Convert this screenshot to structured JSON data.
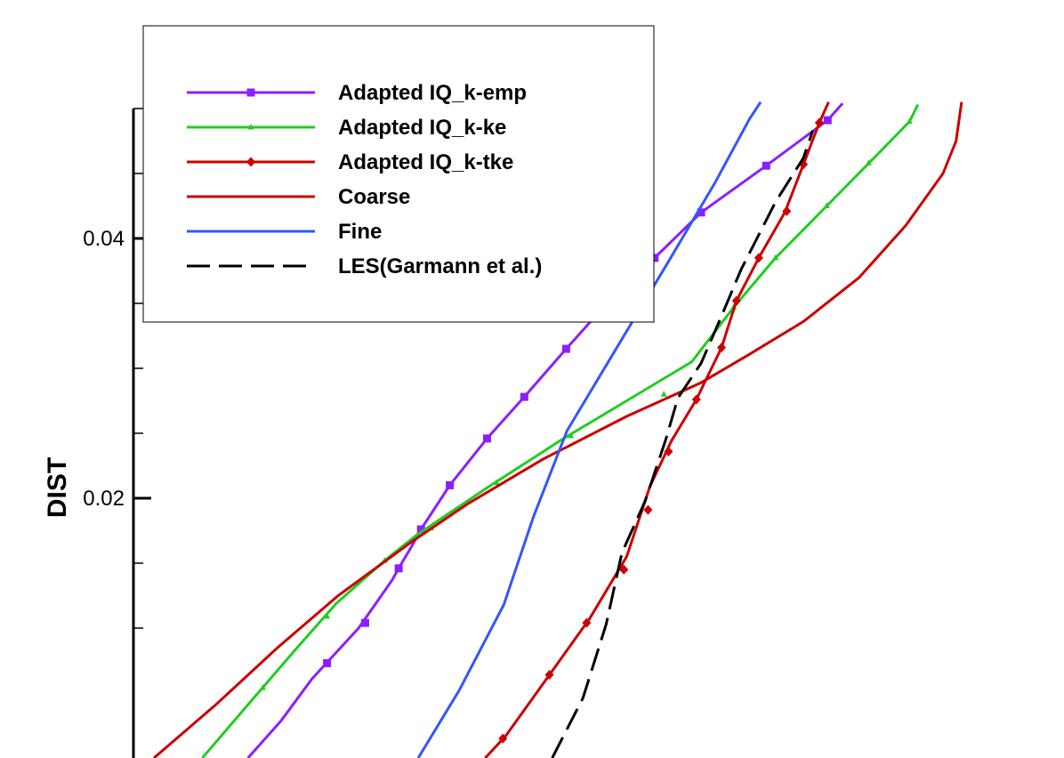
{
  "chart_data": {
    "type": "line",
    "title": "",
    "xlabel": "",
    "ylabel": "DIST",
    "ylim": [
      0.0,
      0.05
    ],
    "xlim": [
      0,
      1
    ],
    "yticks_major": [
      0.02,
      0.04
    ],
    "yticks_major_labels": [
      "0.02",
      "0.04"
    ],
    "yticks_minor": [
      0.01,
      0.015,
      0.025,
      0.03,
      0.035,
      0.045,
      0.05
    ],
    "grid": false,
    "legend_position": "top-left",
    "series": [
      {
        "name": "Adapted IQ_k-emp",
        "color": "#8c1eff",
        "dash": "solid",
        "marker": "square",
        "points": [
          [
            0.123,
            0.0
          ],
          [
            0.159,
            0.0029
          ],
          [
            0.192,
            0.0061
          ],
          [
            0.242,
            0.01
          ],
          [
            0.278,
            0.0137
          ],
          [
            0.285,
            0.0146
          ],
          [
            0.299,
            0.0163
          ],
          [
            0.309,
            0.0176
          ],
          [
            0.34,
            0.021
          ],
          [
            0.38,
            0.0246
          ],
          [
            0.42,
            0.0278
          ],
          [
            0.465,
            0.0315
          ],
          [
            0.51,
            0.0351
          ],
          [
            0.56,
            0.0385
          ],
          [
            0.61,
            0.042
          ],
          [
            0.68,
            0.0456
          ],
          [
            0.746,
            0.0491
          ],
          [
            0.762,
            0.0504
          ]
        ],
        "marker_points": [
          [
            0.208,
            0.0073
          ],
          [
            0.249,
            0.0104
          ],
          [
            0.285,
            0.0146
          ],
          [
            0.309,
            0.0176
          ],
          [
            0.34,
            0.021
          ],
          [
            0.38,
            0.0246
          ],
          [
            0.42,
            0.0278
          ],
          [
            0.465,
            0.0315
          ],
          [
            0.51,
            0.0351
          ],
          [
            0.56,
            0.0385
          ],
          [
            0.61,
            0.042
          ],
          [
            0.68,
            0.0456
          ],
          [
            0.746,
            0.0491
          ]
        ]
      },
      {
        "name": "Adapted IQ_k-ke",
        "color": "#22cc22",
        "dash": "solid",
        "marker": "triangle",
        "points": [
          [
            0.074,
            0.0
          ],
          [
            0.123,
            0.0041
          ],
          [
            0.176,
            0.0085
          ],
          [
            0.218,
            0.0119
          ],
          [
            0.27,
            0.0152
          ],
          [
            0.305,
            0.0172
          ],
          [
            0.38,
            0.0208
          ],
          [
            0.46,
            0.0245
          ],
          [
            0.53,
            0.0275
          ],
          [
            0.6,
            0.0305
          ],
          [
            0.645,
            0.0347
          ],
          [
            0.69,
            0.0385
          ],
          [
            0.745,
            0.0425
          ],
          [
            0.8,
            0.0465
          ],
          [
            0.834,
            0.049
          ],
          [
            0.843,
            0.0503
          ]
        ],
        "marker_points": [
          [
            0.139,
            0.0054
          ],
          [
            0.208,
            0.0109
          ],
          [
            0.27,
            0.0152
          ],
          [
            0.32,
            0.0177
          ],
          [
            0.39,
            0.0212
          ],
          [
            0.47,
            0.0248
          ],
          [
            0.57,
            0.028
          ],
          [
            0.645,
            0.0347
          ],
          [
            0.69,
            0.0385
          ],
          [
            0.745,
            0.0425
          ],
          [
            0.79,
            0.0458
          ],
          [
            0.834,
            0.049
          ]
        ]
      },
      {
        "name": "Adapted IQ_k-tke",
        "color": "#cc0000",
        "dash": "solid",
        "marker": "diamond",
        "points": [
          [
            0.378,
            0.0
          ],
          [
            0.4,
            0.0017
          ],
          [
            0.45,
            0.0067
          ],
          [
            0.49,
            0.0107
          ],
          [
            0.53,
            0.0155
          ],
          [
            0.555,
            0.0209
          ],
          [
            0.578,
            0.0244
          ],
          [
            0.605,
            0.0276
          ],
          [
            0.632,
            0.0316
          ],
          [
            0.648,
            0.0352
          ],
          [
            0.672,
            0.0385
          ],
          [
            0.7,
            0.042
          ],
          [
            0.72,
            0.0457
          ],
          [
            0.737,
            0.0489
          ],
          [
            0.747,
            0.0505
          ]
        ],
        "marker_points": [
          [
            0.397,
            0.0015
          ],
          [
            0.447,
            0.0064
          ],
          [
            0.487,
            0.0104
          ],
          [
            0.527,
            0.0145
          ],
          [
            0.553,
            0.0191
          ],
          [
            0.575,
            0.0236
          ],
          [
            0.605,
            0.0276
          ],
          [
            0.632,
            0.0316
          ],
          [
            0.648,
            0.0352
          ],
          [
            0.672,
            0.0385
          ],
          [
            0.702,
            0.0421
          ],
          [
            0.72,
            0.0457
          ],
          [
            0.737,
            0.0489
          ]
        ]
      },
      {
        "name": "Coarse",
        "color": "#cc0000",
        "dash": "solid",
        "marker": "none",
        "points": [
          [
            0.022,
            0.0
          ],
          [
            0.09,
            0.0042
          ],
          [
            0.155,
            0.0085
          ],
          [
            0.22,
            0.0125
          ],
          [
            0.3,
            0.0167
          ],
          [
            0.36,
            0.0196
          ],
          [
            0.44,
            0.023
          ],
          [
            0.53,
            0.0263
          ],
          [
            0.61,
            0.0289
          ],
          [
            0.66,
            0.031
          ],
          [
            0.72,
            0.0336
          ],
          [
            0.78,
            0.037
          ],
          [
            0.83,
            0.041
          ],
          [
            0.87,
            0.045
          ],
          [
            0.884,
            0.0475
          ],
          [
            0.89,
            0.0505
          ]
        ]
      },
      {
        "name": "Fine",
        "color": "#3355ff",
        "dash": "solid",
        "marker": "none",
        "points": [
          [
            0.306,
            0.0
          ],
          [
            0.35,
            0.0052
          ],
          [
            0.398,
            0.0118
          ],
          [
            0.43,
            0.0186
          ],
          [
            0.466,
            0.0252
          ],
          [
            0.522,
            0.0319
          ],
          [
            0.574,
            0.0381
          ],
          [
            0.625,
            0.0443
          ],
          [
            0.662,
            0.0492
          ],
          [
            0.674,
            0.0505
          ]
        ]
      },
      {
        "name": "LES(Garmann et al.)",
        "color": "#000000",
        "dash": "dashed",
        "marker": "none",
        "points": [
          [
            0.45,
            0.0
          ],
          [
            0.483,
            0.0046
          ],
          [
            0.508,
            0.0103
          ],
          [
            0.525,
            0.0158
          ],
          [
            0.55,
            0.0198
          ],
          [
            0.572,
            0.0245
          ],
          [
            0.585,
            0.0277
          ],
          [
            0.61,
            0.0304
          ],
          [
            0.63,
            0.0337
          ],
          [
            0.653,
            0.0376
          ],
          [
            0.69,
            0.0428
          ],
          [
            0.72,
            0.0462
          ],
          [
            0.73,
            0.0483
          ]
        ]
      }
    ]
  }
}
